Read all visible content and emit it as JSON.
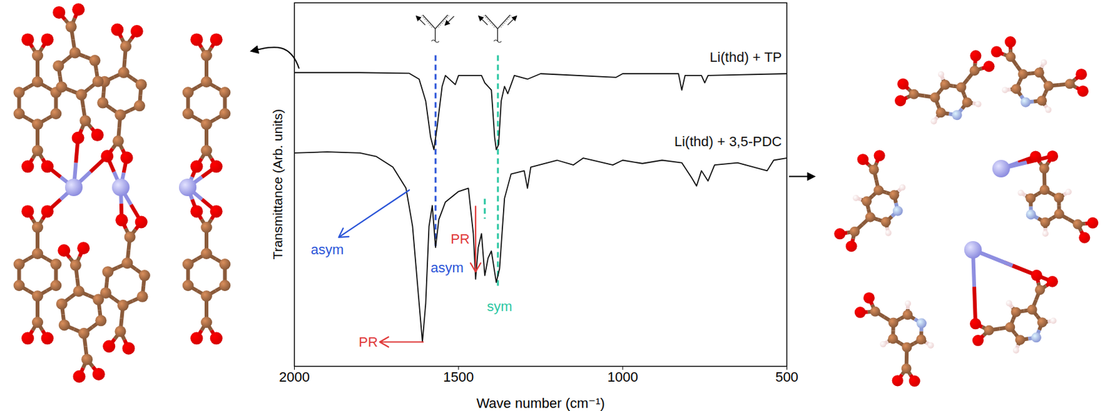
{
  "chart_data": {
    "type": "line",
    "xlabel": "Wave number (cm⁻¹)",
    "ylabel": "Transmittance (Arb. units)",
    "xlim": [
      2000,
      500
    ],
    "xticks": [
      2000,
      1500,
      1000,
      500
    ],
    "ylim": [
      0,
      10
    ],
    "tick_labels": "x",
    "grid": false,
    "series": [
      {
        "name": "Li(thd) + TP",
        "color": "#111111",
        "x": [
          2000,
          1800,
          1650,
          1620,
          1600,
          1585,
          1575,
          1565,
          1550,
          1540,
          1510,
          1500,
          1430,
          1420,
          1400,
          1390,
          1385,
          1378,
          1370,
          1360,
          1350,
          1330,
          1290,
          1250,
          1020,
          1000,
          830,
          820,
          810,
          760,
          750,
          740,
          500
        ],
        "values": [
          8.08,
          8.08,
          8.06,
          7.9,
          7.3,
          6.3,
          5.96,
          6.6,
          7.7,
          8.0,
          7.75,
          8.0,
          8.0,
          7.8,
          7.6,
          6.3,
          5.96,
          6.1,
          7.3,
          7.7,
          7.5,
          8.0,
          7.9,
          8.05,
          7.95,
          8.05,
          8.05,
          7.6,
          8.0,
          8.0,
          7.8,
          8.0,
          8.05
        ]
      },
      {
        "name": "Li(thd) + 3,5-PDC",
        "color": "#111111",
        "x": [
          2000,
          1900,
          1800,
          1750,
          1700,
          1660,
          1640,
          1620,
          1610,
          1600,
          1590,
          1580,
          1570,
          1560,
          1540,
          1500,
          1470,
          1455,
          1448,
          1440,
          1430,
          1420,
          1410,
          1400,
          1385,
          1375,
          1360,
          1340,
          1300,
          1290,
          1280,
          1200,
          1150,
          1120,
          1030,
          1000,
          940,
          880,
          820,
          790,
          775,
          760,
          740,
          720,
          650,
          560,
          540,
          500
        ],
        "values": [
          5.87,
          5.9,
          5.87,
          5.77,
          5.48,
          4.9,
          3.85,
          1.73,
          0.67,
          1.73,
          3.85,
          4.42,
          3.27,
          4.04,
          4.52,
          4.81,
          4.9,
          3.65,
          2.4,
          3.27,
          3.65,
          2.5,
          2.98,
          3.17,
          2.31,
          2.69,
          4.62,
          5.29,
          5.38,
          4.9,
          5.48,
          5.67,
          5.54,
          5.73,
          5.54,
          5.67,
          5.58,
          5.67,
          5.6,
          5.19,
          4.96,
          5.38,
          5.1,
          5.54,
          5.6,
          5.38,
          5.67,
          5.73
        ]
      }
    ],
    "vlines": [
      {
        "x": 1570,
        "y1": 8.55,
        "y2": 3.3,
        "color": "#2b55d8",
        "line_style": "dashed"
      },
      {
        "x": 1380,
        "y1": 8.55,
        "y2": 2.2,
        "color": "#2cc7a3",
        "line_style": "dashed"
      },
      {
        "x": 1420,
        "y1": 4.6,
        "y2": 4.05,
        "color": "#2cc7a3",
        "line_style": "dashed"
      }
    ],
    "annotations": [
      {
        "text": "asym",
        "color": "#2b55d8",
        "x": 1900,
        "y": 3.2,
        "arrow": [
          [
            1650,
            4.85
          ],
          [
            1865,
            3.55
          ]
        ]
      },
      {
        "text": "asym",
        "color": "#2b55d8",
        "x": 1535,
        "y": 2.7
      },
      {
        "text": "PR",
        "color": "#e03a3a",
        "x": 1775,
        "y": 0.67,
        "arrow": [
          [
            1608,
            0.67
          ],
          [
            1740,
            0.67
          ]
        ]
      },
      {
        "text": "PR",
        "color": "#e03a3a",
        "x": 1495,
        "y": 3.5,
        "arrow": [
          [
            1448,
            4.4
          ],
          [
            1448,
            2.6
          ]
        ]
      },
      {
        "text": "sym",
        "color": "#2cc7a3",
        "x": 1375,
        "y": 1.65
      }
    ]
  }
}
